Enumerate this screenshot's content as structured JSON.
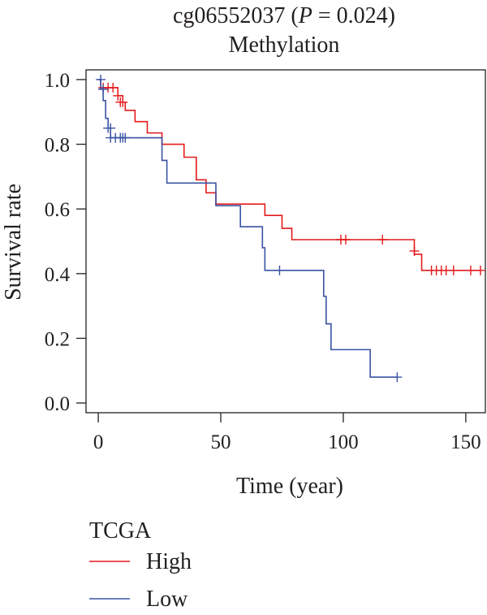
{
  "chart_data": {
    "type": "line",
    "title_probe": "cg06552037 (",
    "title_p_symbol": "P",
    "title_p_value": " = 0.024)",
    "subtitle": "Methylation",
    "xlabel": "Time (year)",
    "ylabel": "Survival rate",
    "xlim": [
      -5,
      158
    ],
    "ylim": [
      -0.03,
      1.03
    ],
    "xticks": [
      0,
      50,
      100,
      150
    ],
    "yticks": [
      0.0,
      0.2,
      0.4,
      0.6,
      0.8,
      1.0
    ],
    "ytick_labels": [
      "0.0",
      "0.2",
      "0.4",
      "0.6",
      "0.8",
      "1.0"
    ],
    "legend_title": "TCGA",
    "legend_position": "bottom-left",
    "series": [
      {
        "name": "High",
        "color": "#e41a1c",
        "steps": [
          [
            0,
            1.0
          ],
          [
            1,
            0.975
          ],
          [
            8,
            0.95
          ],
          [
            10,
            0.93
          ],
          [
            11,
            0.905
          ],
          [
            15,
            0.87
          ],
          [
            20,
            0.835
          ],
          [
            26,
            0.8
          ],
          [
            35,
            0.76
          ],
          [
            40,
            0.69
          ],
          [
            44,
            0.65
          ],
          [
            48,
            0.615
          ],
          [
            68,
            0.58
          ],
          [
            75,
            0.54
          ],
          [
            79,
            0.505
          ],
          [
            129,
            0.46
          ],
          [
            132,
            0.41
          ],
          [
            156,
            0.41
          ]
        ],
        "censor": [
          [
            2,
            0.975
          ],
          [
            4,
            0.975
          ],
          [
            6,
            0.975
          ],
          [
            8,
            0.95
          ],
          [
            9,
            0.93
          ],
          [
            10,
            0.93
          ],
          [
            99,
            0.505
          ],
          [
            101,
            0.505
          ],
          [
            116,
            0.505
          ],
          [
            129,
            0.47
          ],
          [
            136,
            0.41
          ],
          [
            138,
            0.41
          ],
          [
            140,
            0.41
          ],
          [
            142,
            0.41
          ],
          [
            145,
            0.41
          ],
          [
            152,
            0.41
          ],
          [
            156,
            0.41
          ]
        ]
      },
      {
        "name": "Low",
        "color": "#3953a4",
        "steps": [
          [
            0,
            1.0
          ],
          [
            1,
            0.97
          ],
          [
            2,
            0.935
          ],
          [
            3,
            0.88
          ],
          [
            4,
            0.85
          ],
          [
            5,
            0.82
          ],
          [
            26,
            0.75
          ],
          [
            28,
            0.68
          ],
          [
            48,
            0.61
          ],
          [
            58,
            0.545
          ],
          [
            67,
            0.48
          ],
          [
            68,
            0.41
          ],
          [
            92,
            0.33
          ],
          [
            93,
            0.245
          ],
          [
            95,
            0.165
          ],
          [
            111,
            0.08
          ],
          [
            122,
            0.08
          ]
        ],
        "censor": [
          [
            1,
            1.0
          ],
          [
            2,
            0.97
          ],
          [
            4,
            0.85
          ],
          [
            5,
            0.85
          ],
          [
            5,
            0.82
          ],
          [
            7,
            0.82
          ],
          [
            9,
            0.82
          ],
          [
            10,
            0.82
          ],
          [
            11,
            0.82
          ],
          [
            74,
            0.41
          ],
          [
            122,
            0.08
          ]
        ]
      }
    ]
  }
}
